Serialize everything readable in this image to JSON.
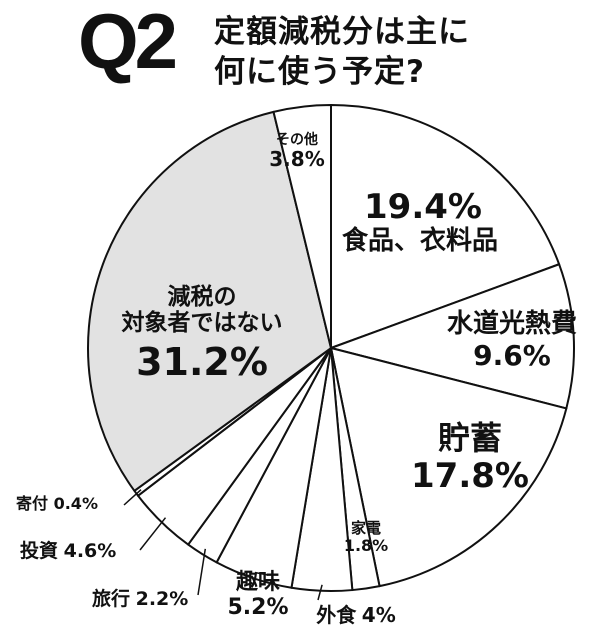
{
  "header": {
    "q_label": "Q2",
    "title_line1": "定額減税分は主に",
    "title_line2": "何に使う予定?"
  },
  "colors": {
    "slice_default": "#ffffff",
    "slice_highlight": "#e2e2e2",
    "stroke": "#111111"
  },
  "chart_data": {
    "type": "pie",
    "start": "12 o'clock",
    "direction": "clockwise",
    "slices": [
      {
        "label": "食品、衣料品",
        "value": 19.4,
        "value_text": "19.4%"
      },
      {
        "label": "水道光熱費",
        "value": 9.6,
        "value_text": "9.6%"
      },
      {
        "label": "貯蓄",
        "value": 17.8,
        "value_text": "17.8%"
      },
      {
        "label": "家電",
        "value": 1.8,
        "value_text": "1.8%"
      },
      {
        "label": "外食",
        "value": 4,
        "value_text": "4%"
      },
      {
        "label": "趣味",
        "value": 5.2,
        "value_text": "5.2%"
      },
      {
        "label": "旅行",
        "value": 2.2,
        "value_text": "2.2%"
      },
      {
        "label": "投資",
        "value": 4.6,
        "value_text": "4.6%"
      },
      {
        "label": "寄付",
        "value": 0.4,
        "value_text": "0.4%"
      },
      {
        "label": "減税の対象者ではない",
        "label_lines": [
          "減税の",
          "対象者ではない"
        ],
        "value": 31.2,
        "value_text": "31.2%",
        "highlight": true
      },
      {
        "label": "その他",
        "value": 3.8,
        "value_text": "3.8%"
      }
    ]
  }
}
